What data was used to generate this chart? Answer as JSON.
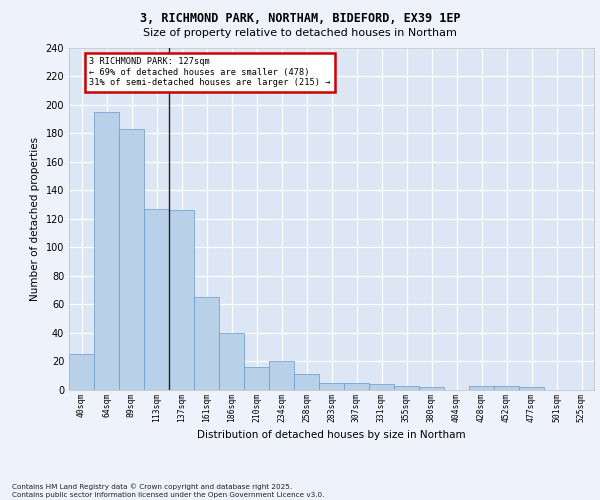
{
  "title_line1": "3, RICHMOND PARK, NORTHAM, BIDEFORD, EX39 1EP",
  "title_line2": "Size of property relative to detached houses in Northam",
  "xlabel": "Distribution of detached houses by size in Northam",
  "ylabel": "Number of detached properties",
  "categories": [
    "40sqm",
    "64sqm",
    "89sqm",
    "113sqm",
    "137sqm",
    "161sqm",
    "186sqm",
    "210sqm",
    "234sqm",
    "258sqm",
    "283sqm",
    "307sqm",
    "331sqm",
    "355sqm",
    "380sqm",
    "404sqm",
    "428sqm",
    "452sqm",
    "477sqm",
    "501sqm",
    "525sqm"
  ],
  "values": [
    25,
    195,
    183,
    127,
    126,
    65,
    40,
    16,
    20,
    11,
    5,
    5,
    4,
    3,
    2,
    0,
    3,
    3,
    2,
    0,
    0
  ],
  "bar_color": "#b8d0e8",
  "bar_edge_color": "#6699cc",
  "background_color": "#dce6f5",
  "grid_color": "#ffffff",
  "annotation_text": "3 RICHMOND PARK: 127sqm\n← 69% of detached houses are smaller (478)\n31% of semi-detached houses are larger (215) →",
  "annotation_box_color": "#ffffff",
  "annotation_box_edge": "#cc0000",
  "ylim": [
    0,
    240
  ],
  "yticks": [
    0,
    20,
    40,
    60,
    80,
    100,
    120,
    140,
    160,
    180,
    200,
    220,
    240
  ],
  "footer_text": "Contains HM Land Registry data © Crown copyright and database right 2025.\nContains public sector information licensed under the Open Government Licence v3.0.",
  "vline_x": 3.5,
  "fig_bg_color": "#eef2fb",
  "fig_width": 6.0,
  "fig_height": 5.0
}
